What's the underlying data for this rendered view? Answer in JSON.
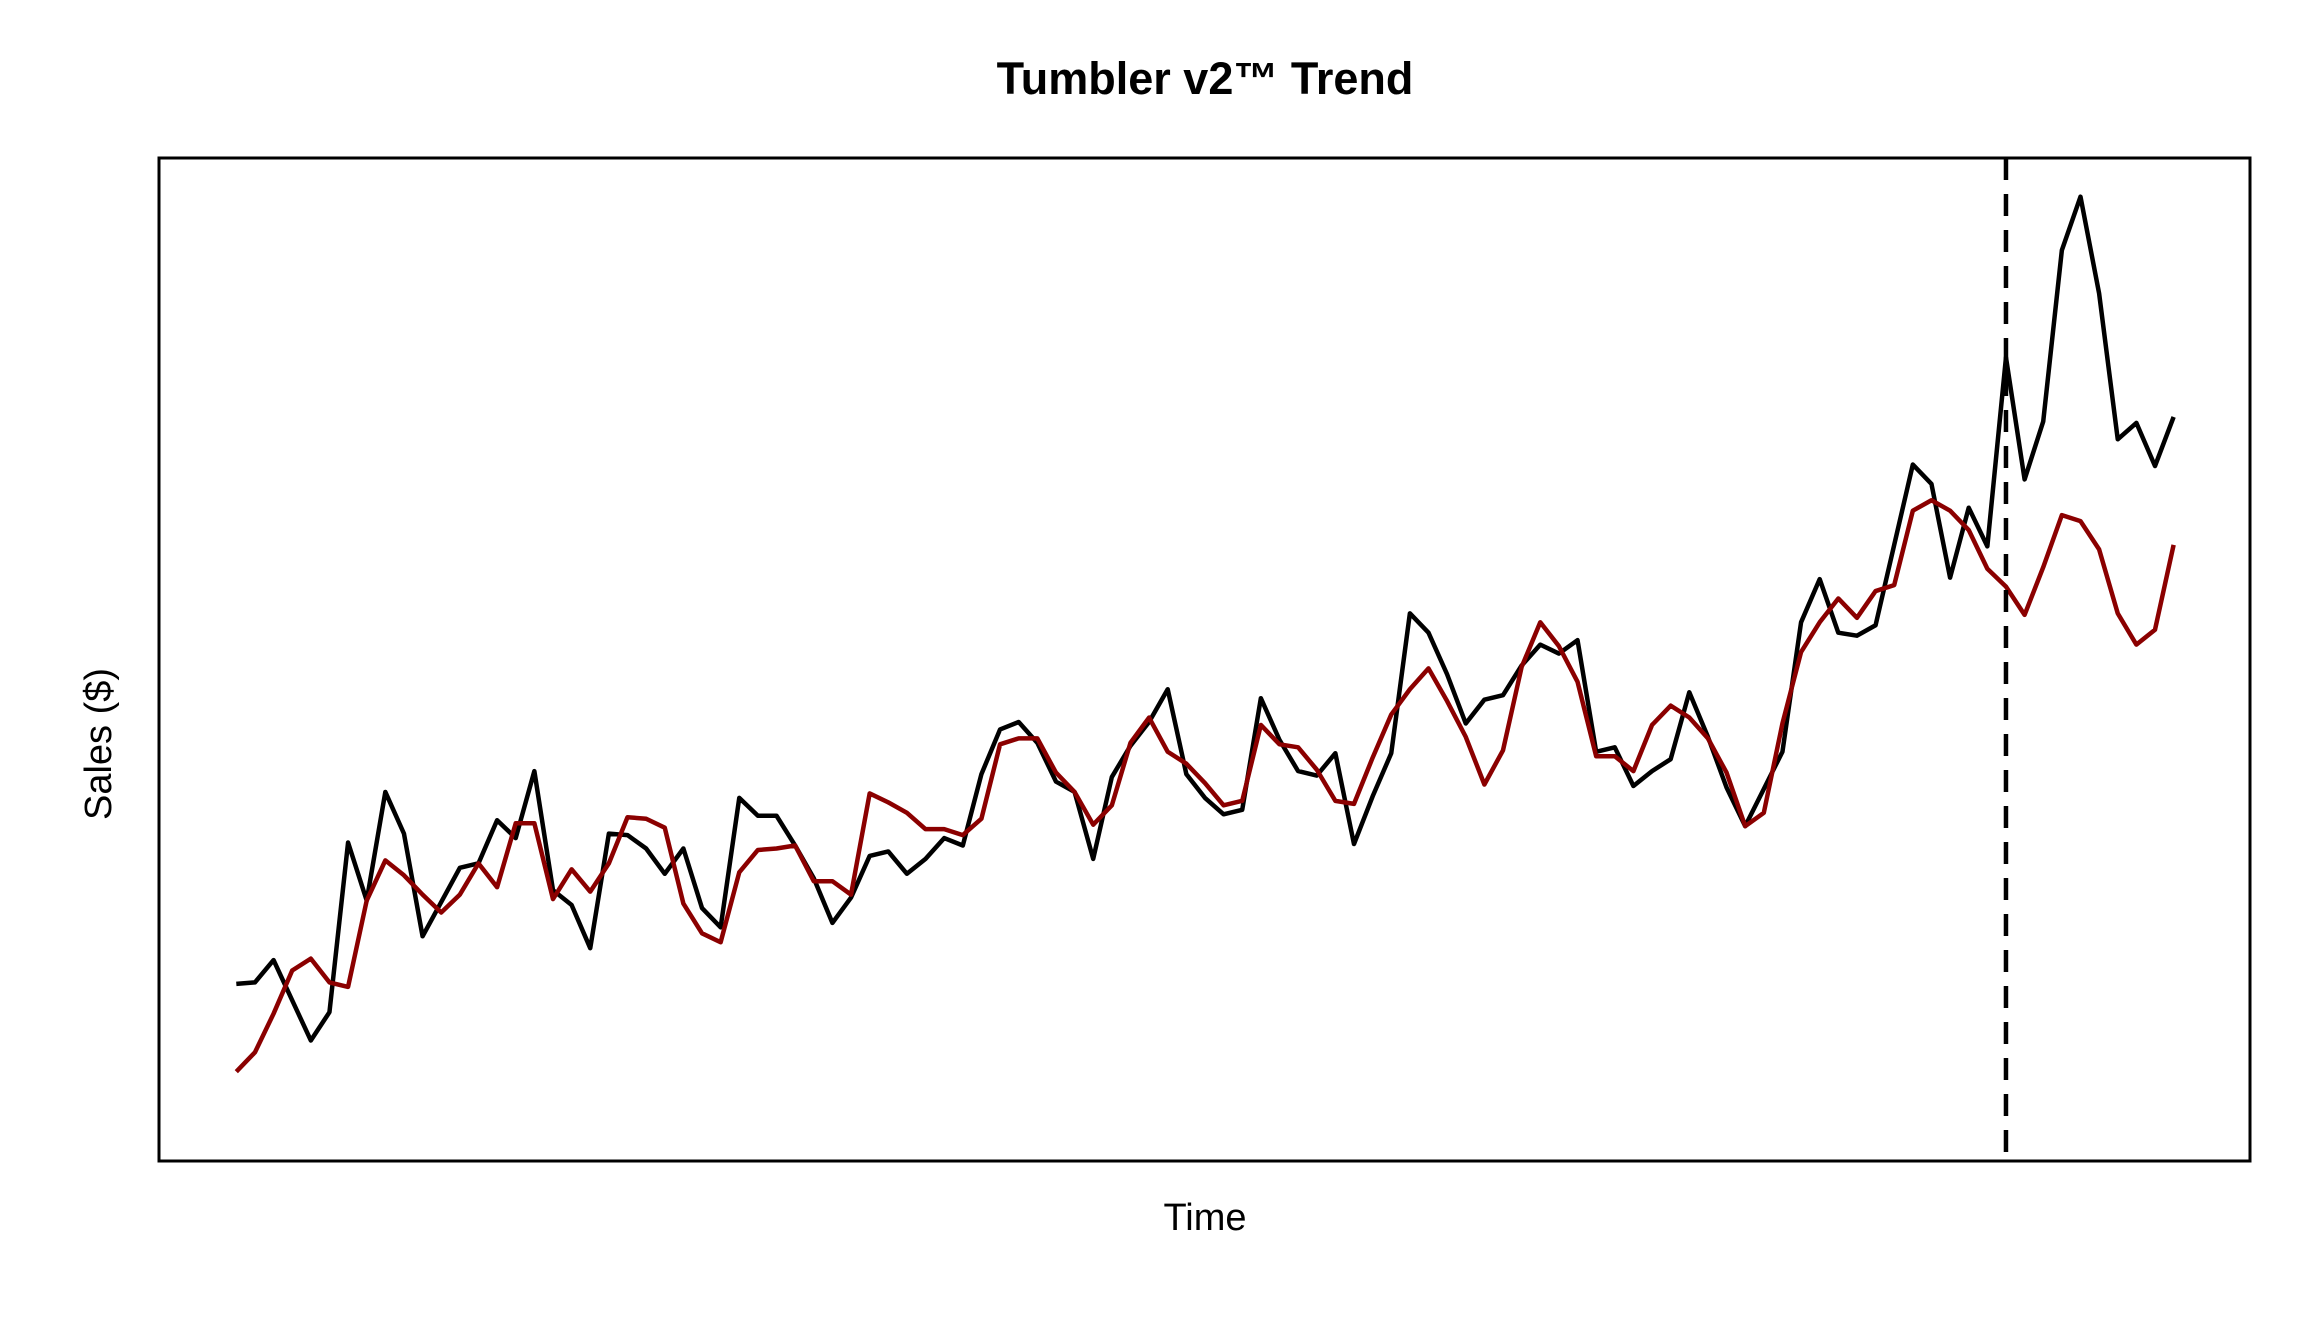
{
  "chart_data": {
    "type": "line",
    "title": "Tumbler v2™ Trend",
    "x_label": "Time",
    "y_label": "Sales ($)",
    "x": [
      1,
      2,
      3,
      4,
      5,
      6,
      7,
      8,
      9,
      10,
      11,
      12,
      13,
      14,
      15,
      16,
      17,
      18,
      19,
      20,
      21,
      22,
      23,
      24,
      25,
      26,
      27,
      28,
      29,
      30,
      31,
      32,
      33,
      34,
      35,
      36,
      37,
      38,
      39,
      40,
      41,
      42,
      43,
      44,
      45,
      46,
      47,
      48,
      49,
      50,
      51,
      52,
      53,
      54,
      55,
      56,
      57,
      58,
      59,
      60,
      61,
      62,
      63,
      64,
      65,
      66,
      67,
      68,
      69,
      70,
      71,
      72,
      73,
      74,
      75,
      76,
      77,
      78,
      79,
      80,
      81,
      82,
      83,
      84,
      85,
      86,
      87,
      88,
      89,
      90,
      91,
      92,
      93,
      94,
      95,
      96,
      97,
      98,
      99,
      100,
      101,
      102,
      103,
      104,
      105
    ],
    "series": [
      {
        "color": "#000000",
        "values": [
          119,
          120,
          135,
          108,
          81,
          100,
          214,
          175,
          248,
          220,
          151,
          174,
          197,
          200,
          229,
          217,
          262,
          182,
          172,
          143,
          220,
          219,
          210,
          193,
          210,
          170,
          157,
          244,
          232,
          232,
          212,
          190,
          160,
          177,
          205,
          208,
          193,
          203,
          217,
          212,
          260,
          290,
          295,
          281,
          255,
          248,
          203,
          258,
          279,
          295,
          317,
          260,
          244,
          233,
          236,
          311,
          283,
          262,
          259,
          274,
          213,
          245,
          274,
          368,
          355,
          327,
          294,
          310,
          313,
          333,
          347,
          341,
          350,
          275,
          278,
          252,
          262,
          270,
          315,
          285,
          251,
          225,
          250,
          275,
          362,
          391,
          355,
          353,
          360,
          414,
          468,
          455,
          392,
          439,
          413,
          540,
          458,
          497,
          612,
          648,
          583,
          485,
          496,
          467,
          500
        ]
      },
      {
        "color": "#8b0000",
        "values": [
          60,
          73,
          99,
          128,
          136,
          120,
          117,
          175,
          202,
          192,
          179,
          167,
          179,
          200,
          184,
          227,
          227,
          176,
          196,
          181,
          200,
          231,
          230,
          224,
          173,
          153,
          147,
          194,
          209,
          210,
          212,
          188,
          188,
          179,
          247,
          241,
          234,
          223,
          223,
          219,
          230,
          280,
          284,
          284,
          261,
          248,
          226,
          239,
          281,
          298,
          275,
          267,
          254,
          239,
          242,
          293,
          280,
          278,
          263,
          242,
          240,
          271,
          300,
          317,
          331,
          309,
          285,
          253,
          276,
          332,
          362,
          346,
          322,
          272,
          272,
          262,
          293,
          306,
          298,
          284,
          261,
          225,
          234,
          294,
          342,
          362,
          378,
          365,
          383,
          387,
          437,
          444,
          437,
          424,
          398,
          386,
          367,
          399,
          434,
          430,
          411,
          368,
          347,
          357,
          414
        ]
      }
    ],
    "vline": 96,
    "vline_color": "#000000",
    "xlim": [
      -3.15,
      109.1
    ],
    "ylim": [
      0,
      674
    ]
  }
}
